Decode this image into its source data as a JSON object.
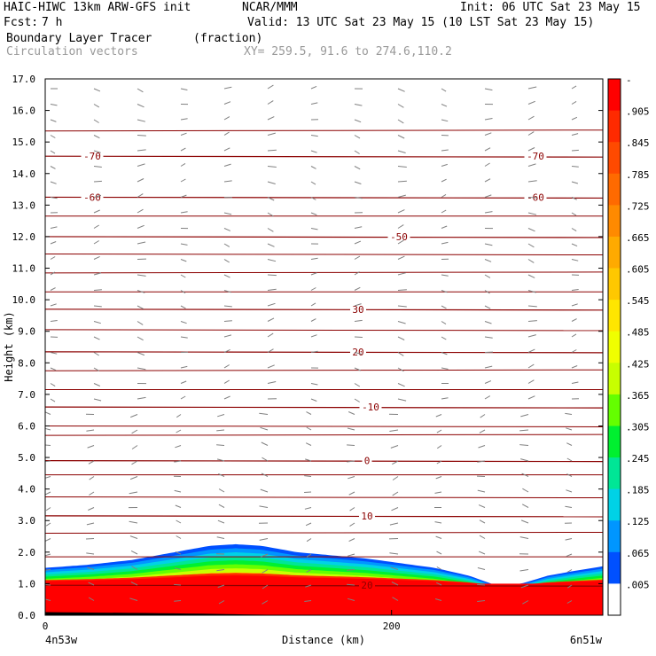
{
  "header": {
    "model": "HAIC-HIWC 13km ARW-GFS init",
    "center": "NCAR/MMM",
    "init": "Init: 06 UTC Sat 23 May 15",
    "fcst_label": "Fcst:",
    "fcst_value": "7 h",
    "valid": "Valid: 13 UTC Sat 23 May 15 (10 LST Sat 23 May 15)",
    "field": "Boundary Layer Tracer",
    "field_units": "(fraction)",
    "overlay": "Circulation vectors",
    "xy": "XY= 259.5, 91.6 to 274.6,110.2"
  },
  "chart_data": {
    "type": "heatmap",
    "title": "Boundary Layer Tracer",
    "xlabel": "Distance (km)",
    "ylabel": "Height (km)",
    "xlim": [
      0,
      322
    ],
    "ylim": [
      0,
      17
    ],
    "x_ticks": [
      {
        "value": 0,
        "label": "0"
      },
      {
        "value": 200,
        "label": "200"
      }
    ],
    "x_end_labels": {
      "left": "4n53w",
      "right": "6n51w"
    },
    "y_ticks": [
      "0.0",
      "1.0",
      "2.0",
      "3.0",
      "4.0",
      "5.0",
      "6.0",
      "7.0",
      "8.0",
      "9.0",
      "10.0",
      "11.0",
      "12.0",
      "13.0",
      "14.0",
      "15.0",
      "16.0",
      "17.0"
    ],
    "tracer_top_km": [
      [
        0,
        1.5
      ],
      [
        25,
        1.6
      ],
      [
        50,
        1.75
      ],
      [
        75,
        2.0
      ],
      [
        95,
        2.2
      ],
      [
        110,
        2.25
      ],
      [
        125,
        2.2
      ],
      [
        145,
        2.0
      ],
      [
        165,
        1.9
      ],
      [
        185,
        1.8
      ],
      [
        205,
        1.65
      ],
      [
        225,
        1.5
      ],
      [
        245,
        1.25
      ],
      [
        260,
        0.95
      ],
      [
        275,
        1.0
      ],
      [
        290,
        1.25
      ],
      [
        305,
        1.4
      ],
      [
        322,
        1.55
      ]
    ],
    "temperature_contours": [
      {
        "value": -70,
        "label": "-70",
        "height_km": 14.55
      },
      {
        "value": -60,
        "label": "-60",
        "height_km": 13.25
      },
      {
        "value": -50,
        "label": "-50",
        "height_km": 12.0
      },
      {
        "value": 30,
        "label": "30",
        "height_km": 9.7
      },
      {
        "value": 20,
        "label": "20",
        "height_km": 8.35
      },
      {
        "value": -10,
        "label": "-10",
        "height_km": 6.6
      },
      {
        "value": 0,
        "label": "0",
        "height_km": 4.9
      },
      {
        "value": 10,
        "label": "10",
        "height_km": 3.15
      },
      {
        "value": 20,
        "label": "20",
        "height_km": 0.95
      }
    ],
    "colorbar": {
      "labels": [
        "-",
        ".905",
        ".845",
        ".785",
        ".725",
        ".665",
        ".605",
        ".545",
        ".485",
        ".425",
        ".365",
        ".305",
        ".245",
        ".185",
        ".125",
        ".065",
        ".005"
      ],
      "colors": [
        "#ff0000",
        "#ff2a00",
        "#ff4a00",
        "#ff6a00",
        "#ff8a00",
        "#ffaa00",
        "#ffc800",
        "#ffe600",
        "#f0ff00",
        "#c8ff00",
        "#64ff00",
        "#00f030",
        "#00e696",
        "#00d2e6",
        "#0096ff",
        "#0050ff",
        "#ffffff"
      ]
    }
  }
}
